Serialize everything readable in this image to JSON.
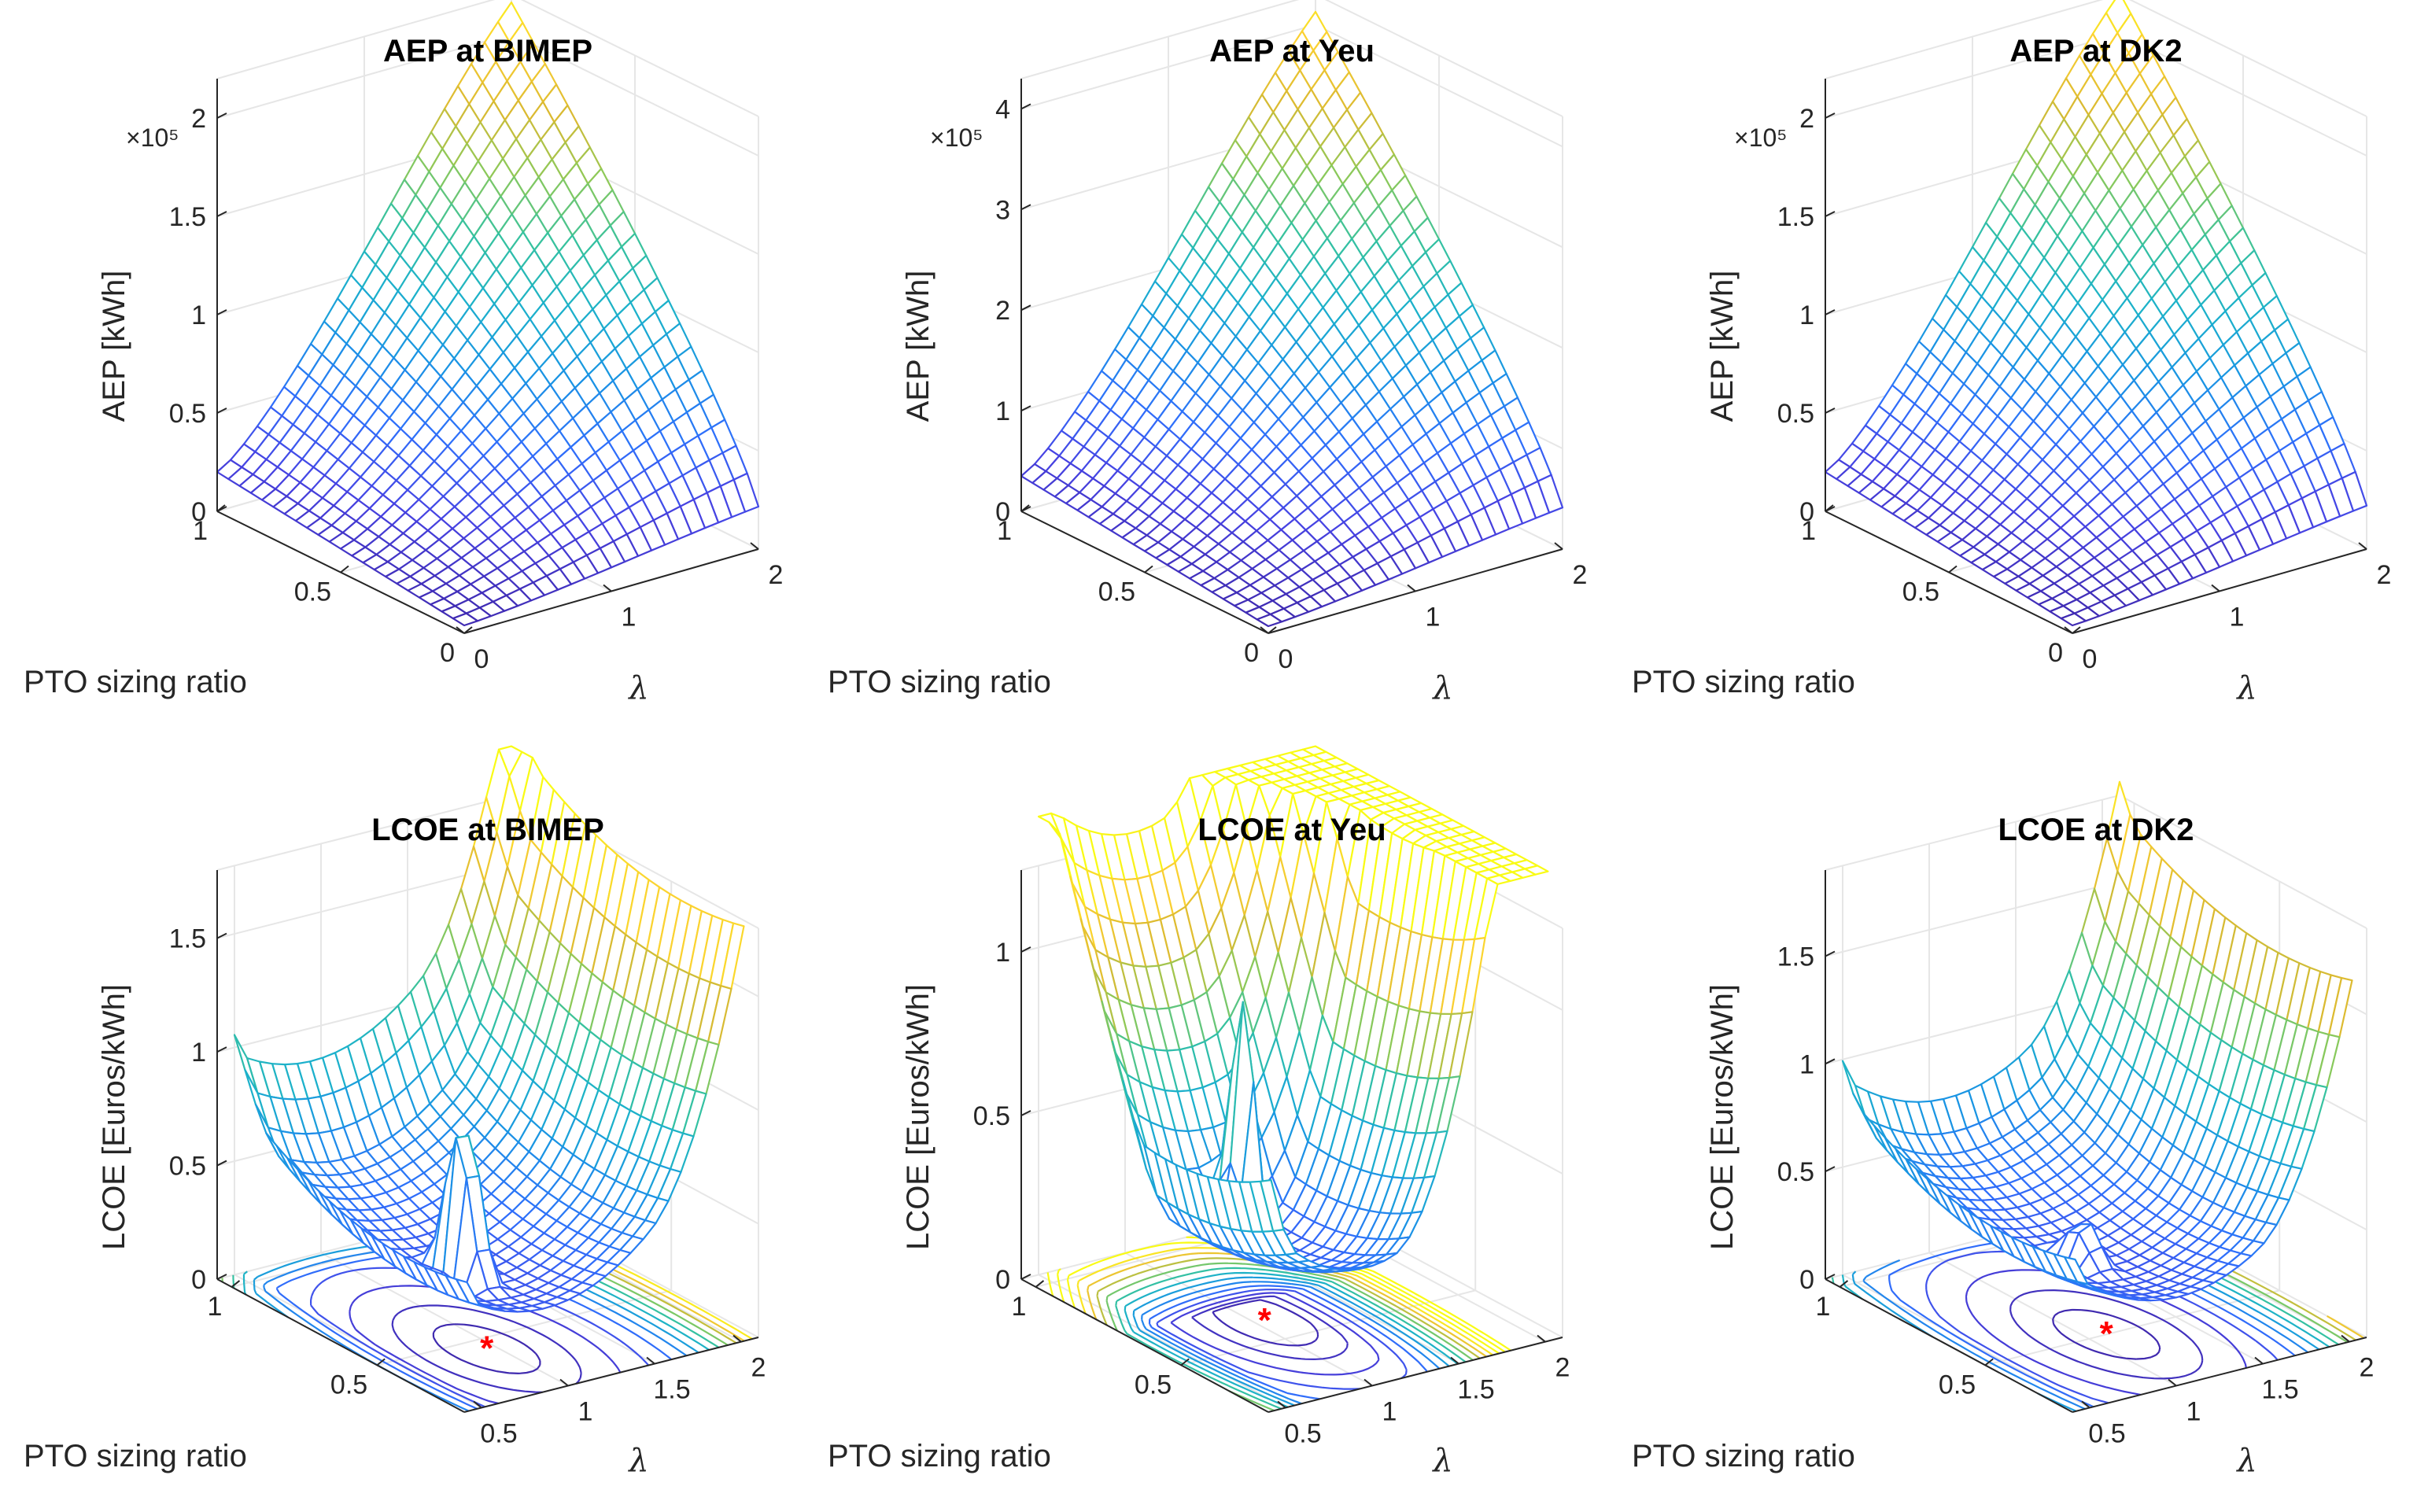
{
  "chart_data": [
    {
      "id": "aep-bimep",
      "type": "surface3d",
      "title": "AEP at BIMEP",
      "xlabel": "λ",
      "ylabel": "PTO sizing ratio",
      "zlabel": "AEP [kWh]",
      "z_exponent_label": "×10⁵",
      "xlim": [
        0,
        2
      ],
      "ylim": [
        0,
        1
      ],
      "zlim": [
        0,
        2.2
      ],
      "x_ticks": [
        "0",
        "1",
        "2"
      ],
      "y_ticks": [
        "0",
        "0.5",
        "1"
      ],
      "z_ticks": [
        "0",
        "0.5",
        "1",
        "1.5",
        "2"
      ],
      "z_tick_values": [
        0,
        0.5,
        1,
        1.5,
        2
      ],
      "surface": {
        "model": "aep",
        "peak": 2.25,
        "base": 0.2
      },
      "contour": null,
      "optimum": null
    },
    {
      "id": "aep-yeu",
      "type": "surface3d",
      "title": "AEP at Yeu",
      "xlabel": "λ",
      "ylabel": "PTO sizing ratio",
      "zlabel": "AEP [kWh]",
      "z_exponent_label": "×10⁵",
      "xlim": [
        0,
        2
      ],
      "ylim": [
        0,
        1
      ],
      "zlim": [
        0,
        4.3
      ],
      "x_ticks": [
        "0",
        "1",
        "2"
      ],
      "y_ticks": [
        "0",
        "0.5",
        "1"
      ],
      "z_ticks": [
        "0",
        "1",
        "2",
        "3",
        "4"
      ],
      "z_tick_values": [
        0,
        1,
        2,
        3,
        4
      ],
      "surface": {
        "model": "aep",
        "peak": 4.3,
        "base": 0.35
      },
      "contour": null,
      "optimum": null
    },
    {
      "id": "aep-dk2",
      "type": "surface3d",
      "title": "AEP at DK2",
      "xlabel": "λ",
      "ylabel": "PTO sizing ratio",
      "zlabel": "AEP [kWh]",
      "z_exponent_label": "×10⁵",
      "xlim": [
        0,
        2
      ],
      "ylim": [
        0,
        1
      ],
      "zlim": [
        0,
        2.2
      ],
      "x_ticks": [
        "0",
        "1",
        "2"
      ],
      "y_ticks": [
        "0",
        "0.5",
        "1"
      ],
      "z_ticks": [
        "0",
        "0.5",
        "1",
        "1.5",
        "2"
      ],
      "z_tick_values": [
        0,
        0.5,
        1,
        1.5,
        2
      ],
      "surface": {
        "model": "aep",
        "peak": 2.3,
        "base": 0.2
      },
      "contour": null,
      "optimum": null
    },
    {
      "id": "lcoe-bimep",
      "type": "surface3d",
      "title": "LCOE at BIMEP",
      "xlabel": "λ",
      "ylabel": "PTO sizing ratio",
      "zlabel": "LCOE [Euros/kWh]",
      "z_exponent_label": "",
      "xlim": [
        0.4,
        2.1
      ],
      "ylim": [
        0.2,
        1.05
      ],
      "zlim": [
        0,
        1.8
      ],
      "x_ticks": [
        "0.5",
        "1",
        "1.5",
        "2"
      ],
      "y_ticks": [
        "0.5",
        "1"
      ],
      "z_ticks": [
        "0",
        "0.5",
        "1",
        "1.5"
      ],
      "z_tick_values": [
        0,
        0.5,
        1,
        1.5
      ],
      "surface": {
        "model": "lcoe",
        "min": 0.28,
        "opt_x": 0.95,
        "opt_y": 0.45,
        "spike_height": 0.9,
        "edge_lo_x": 0.55,
        "edge_hi_x": 1.55,
        "edge_hi_y": 0.95
      },
      "contour": "filled-lines",
      "optimum": {
        "x": 0.95,
        "y": 0.45,
        "marker": "*"
      }
    },
    {
      "id": "lcoe-yeu",
      "type": "surface3d",
      "title": "LCOE at Yeu",
      "xlabel": "λ",
      "ylabel": "PTO sizing ratio",
      "zlabel": "LCOE [Euros/kWh]",
      "z_exponent_label": "",
      "xlim": [
        0.4,
        2.1
      ],
      "ylim": [
        0.2,
        1.05
      ],
      "zlim": [
        0,
        1.25
      ],
      "x_ticks": [
        "0.5",
        "1",
        "1.5",
        "2"
      ],
      "y_ticks": [
        "0.5",
        "1"
      ],
      "z_ticks": [
        "0",
        "0.5",
        "1"
      ],
      "z_tick_values": [
        0,
        0.5,
        1
      ],
      "surface": {
        "model": "lcoe",
        "min": 0.22,
        "opt_x": 1.05,
        "opt_y": 0.6,
        "spike_height": 0.75,
        "edge_lo_x": 0.6,
        "edge_hi_x": 1.2,
        "edge_hi_y": 0.7
      },
      "contour": "filled-lines",
      "optimum": {
        "x": 1.05,
        "y": 0.6,
        "marker": "*"
      }
    },
    {
      "id": "lcoe-dk2",
      "type": "surface3d",
      "title": "LCOE at DK2",
      "xlabel": "λ",
      "ylabel": "PTO sizing ratio",
      "zlabel": "LCOE [Euros/kWh]",
      "z_exponent_label": "",
      "xlim": [
        0.4,
        2.1
      ],
      "ylim": [
        0.2,
        1.05
      ],
      "zlim": [
        0,
        1.9
      ],
      "x_ticks": [
        "0.5",
        "1",
        "1.5",
        "2"
      ],
      "y_ticks": [
        "0.5",
        "1"
      ],
      "z_ticks": [
        "0",
        "0.5",
        "1",
        "1.5"
      ],
      "z_tick_values": [
        0,
        0.5,
        1,
        1.5
      ],
      "surface": {
        "model": "lcoe",
        "min": 0.3,
        "opt_x": 1.1,
        "opt_y": 0.5,
        "spike_height": 0.25,
        "edge_lo_x": 0.55,
        "edge_hi_x": 1.55,
        "edge_hi_y": 1.0
      },
      "contour": "filled-lines",
      "optimum": {
        "x": 1.1,
        "y": 0.5,
        "marker": "*"
      }
    }
  ],
  "colors": {
    "parula": [
      "#3e26a8",
      "#4743e3",
      "#2f6ffb",
      "#1a94e4",
      "#1cb1cb",
      "#36c29f",
      "#8cc959",
      "#dbba31",
      "#fbd032",
      "#f9fb15"
    ],
    "axis": "#262626",
    "grid": "#e6e6e6",
    "optimum_marker": "#ff0000"
  }
}
